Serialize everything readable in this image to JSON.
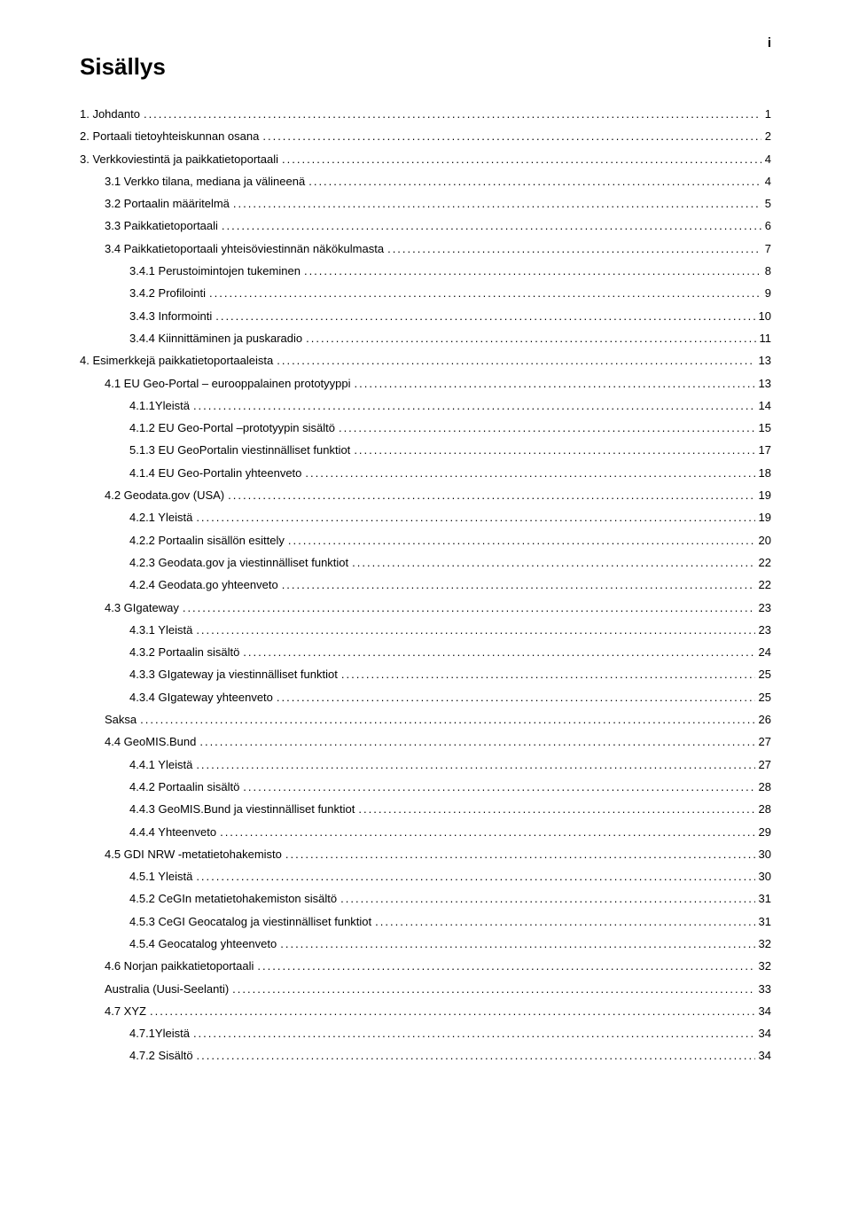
{
  "page_marker": "i",
  "title": "Sisällys",
  "toc": [
    {
      "indent": 0,
      "label": "1. Johdanto",
      "page": "1"
    },
    {
      "indent": 0,
      "label": "2. Portaali tietoyhteiskunnan osana",
      "page": "2"
    },
    {
      "indent": 0,
      "label": "3. Verkkoviestintä ja paikkatietoportaali",
      "page": "4"
    },
    {
      "indent": 1,
      "label": "3.1 Verkko tilana, mediana ja välineenä",
      "page": "4"
    },
    {
      "indent": 1,
      "label": "3.2 Portaalin määritelmä",
      "page": "5"
    },
    {
      "indent": 1,
      "label": "3.3 Paikkatietoportaali",
      "page": "6"
    },
    {
      "indent": 1,
      "label": "3.4 Paikkatietoportaali yhteisöviestinnän näkökulmasta",
      "page": "7"
    },
    {
      "indent": 2,
      "label": "3.4.1 Perustoimintojen tukeminen",
      "page": "8"
    },
    {
      "indent": 2,
      "label": "3.4.2 Profilointi",
      "page": "9"
    },
    {
      "indent": 2,
      "label": "3.4.3 Informointi",
      "page": "10"
    },
    {
      "indent": 2,
      "label": "3.4.4 Kiinnittäminen ja puskaradio",
      "page": "11"
    },
    {
      "indent": 0,
      "label": "4. Esimerkkejä paikkatietoportaaleista",
      "page": "13"
    },
    {
      "indent": 1,
      "label": "4.1 EU Geo-Portal – eurooppalainen prototyyppi",
      "page": "13"
    },
    {
      "indent": 2,
      "label": "4.1.1Yleistä",
      "page": "14"
    },
    {
      "indent": 2,
      "label": "4.1.2 EU Geo-Portal –prototyypin sisältö",
      "page": "15"
    },
    {
      "indent": 2,
      "label": "5.1.3 EU GeoPortalin  viestinnälliset funktiot",
      "page": "17"
    },
    {
      "indent": 2,
      "label": "4.1.4 EU Geo-Portalin yhteenveto",
      "page": "18"
    },
    {
      "indent": 1,
      "label": "4.2 Geodata.gov (USA)",
      "page": "19"
    },
    {
      "indent": 2,
      "label": "4.2.1 Yleistä",
      "page": "19"
    },
    {
      "indent": 2,
      "label": "4.2.2 Portaalin sisällön esittely",
      "page": "20"
    },
    {
      "indent": 2,
      "label": "4.2.3 Geodata.gov ja viestinnälliset funktiot",
      "page": "22"
    },
    {
      "indent": 2,
      "label": "4.2.4 Geodata.go yhteenveto",
      "page": "22"
    },
    {
      "indent": 1,
      "label": "4.3 GIgateway",
      "page": "23"
    },
    {
      "indent": 2,
      "label": "4.3.1 Yleistä",
      "page": "23"
    },
    {
      "indent": 2,
      "label": "4.3.2 Portaalin sisältö",
      "page": "24"
    },
    {
      "indent": 2,
      "label": "4.3.3 GIgateway ja viestinnälliset funktiot",
      "page": "25"
    },
    {
      "indent": 2,
      "label": "4.3.4 GIgateway yhteenveto",
      "page": "25"
    },
    {
      "indent": 1,
      "label": "Saksa",
      "page": "26"
    },
    {
      "indent": 1,
      "label": "4.4 GeoMIS.Bund",
      "page": "27"
    },
    {
      "indent": 2,
      "label": "4.4.1 Yleistä",
      "page": "27"
    },
    {
      "indent": 2,
      "label": "4.4.2 Portaalin sisältö",
      "page": "28"
    },
    {
      "indent": 2,
      "label": "4.4.3 GeoMIS.Bund ja viestinnälliset funktiot",
      "page": "28"
    },
    {
      "indent": 2,
      "label": "4.4.4 Yhteenveto",
      "page": "29"
    },
    {
      "indent": 1,
      "label": "4.5  GDI NRW -metatietohakemisto",
      "page": "30"
    },
    {
      "indent": 2,
      "label": "4.5.1 Yleistä",
      "page": "30"
    },
    {
      "indent": 2,
      "label": "4.5.2 CeGIn metatietohakemiston sisältö",
      "page": "31"
    },
    {
      "indent": 2,
      "label": "4.5.3  CeGI Geocatalog ja viestinnälliset funktiot",
      "page": "31"
    },
    {
      "indent": 2,
      "label": "4.5.4  Geocatalog yhteenveto",
      "page": "32"
    },
    {
      "indent": 1,
      "label": "4.6 Norjan paikkatietoportaali",
      "page": "32"
    },
    {
      "indent": 1,
      "label": "Australia  (Uusi-Seelanti)",
      "page": "33"
    },
    {
      "indent": 1,
      "label": "4.7 XYZ",
      "page": "34"
    },
    {
      "indent": 2,
      "label": "4.7.1Yleistä",
      "page": "34"
    },
    {
      "indent": 2,
      "label": "4.7.2 Sisältö",
      "page": "34"
    }
  ]
}
